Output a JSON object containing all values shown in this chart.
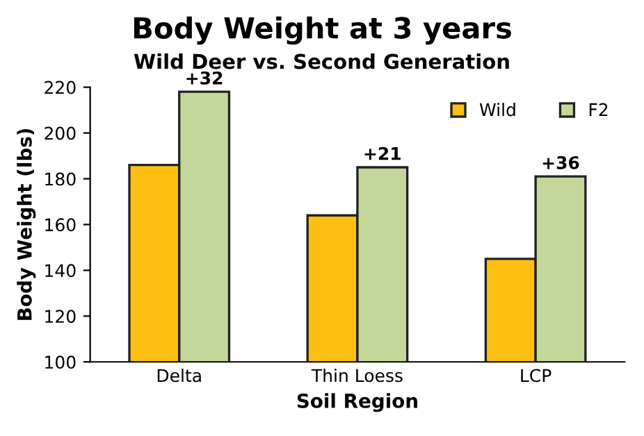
{
  "chart_data": {
    "type": "bar",
    "title": "Body Weight at 3 years",
    "subtitle": "Wild Deer vs. Second Generation",
    "xlabel": "Soil Region",
    "ylabel": "Body Weight (lbs)",
    "categories": [
      "Delta",
      "Thin Loess",
      "LCP"
    ],
    "series": [
      {
        "name": "Wild",
        "color": "#fdbf12",
        "values": [
          186,
          164,
          145
        ]
      },
      {
        "name": "F2",
        "color": "#c4d79b",
        "values": [
          218,
          185,
          181
        ]
      }
    ],
    "annotations": [
      {
        "text": "+32",
        "x": "Delta",
        "y": 218
      },
      {
        "text": "+21",
        "x": "Thin Loess",
        "y": 185
      },
      {
        "text": "+36",
        "x": "LCP",
        "y": 181
      }
    ],
    "ylim": [
      100,
      220
    ],
    "yticks": [
      100,
      120,
      140,
      160,
      180,
      200,
      220
    ],
    "grid": false,
    "legend": "top right"
  }
}
